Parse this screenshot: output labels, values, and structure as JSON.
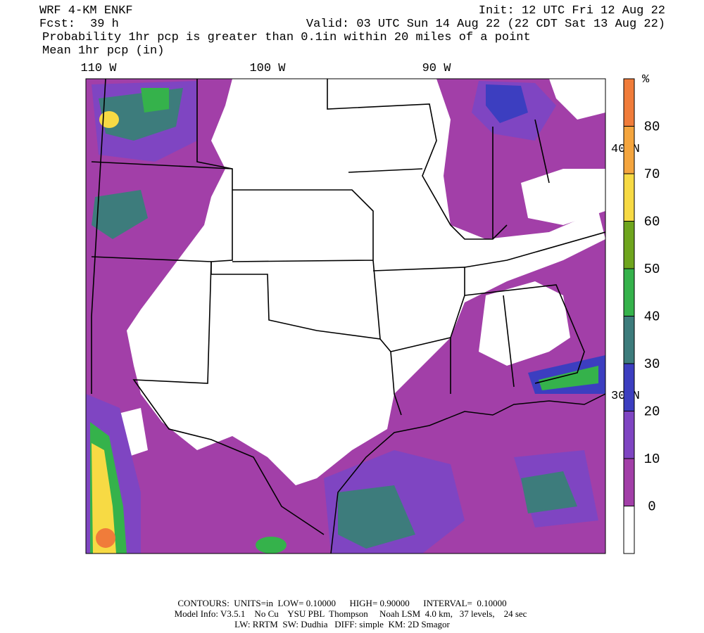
{
  "header": {
    "model": "WRF 4-KM ENKF",
    "init": "Init: 12 UTC Fri 12 Aug 22",
    "fcst_label": "Fcst:",
    "fcst_value": "39 h",
    "valid": "Valid: 03 UTC Sun 14 Aug 22 (22 CDT Sat 13 Aug 22)",
    "field_1": "Probability 1hr pcp is greater than 0.1in within 20 miles of a point",
    "field_2": "Mean 1hr pcp (in)"
  },
  "map": {
    "lon_labels": [
      "110 W",
      "100 W",
      "90 W"
    ],
    "lat_labels": [
      "40 N",
      "30 N"
    ]
  },
  "colorbar": {
    "unit": "%",
    "levels": [
      0,
      10,
      20,
      30,
      40,
      50,
      60,
      70,
      80
    ],
    "colors": [
      "#ffffff",
      "#a23fa8",
      "#7f45c2",
      "#3c3ec0",
      "#3d7c7c",
      "#35b24b",
      "#6ea51d",
      "#f7da44",
      "#f4a53e",
      "#f07c3a"
    ]
  },
  "footer": {
    "line_1": "CONTOURS:  UNITS=in  LOW= 0.10000      HIGH= 0.90000      INTERVAL=  0.10000",
    "line_2": "Model Info: V3.5.1    No Cu    YSU PBL  Thompson     Noah LSM  4.0 km,   37 levels,    24 sec",
    "line_3": "LW: RRTM  SW: Dudhia   DIFF: simple  KM: 2D Smagor"
  }
}
